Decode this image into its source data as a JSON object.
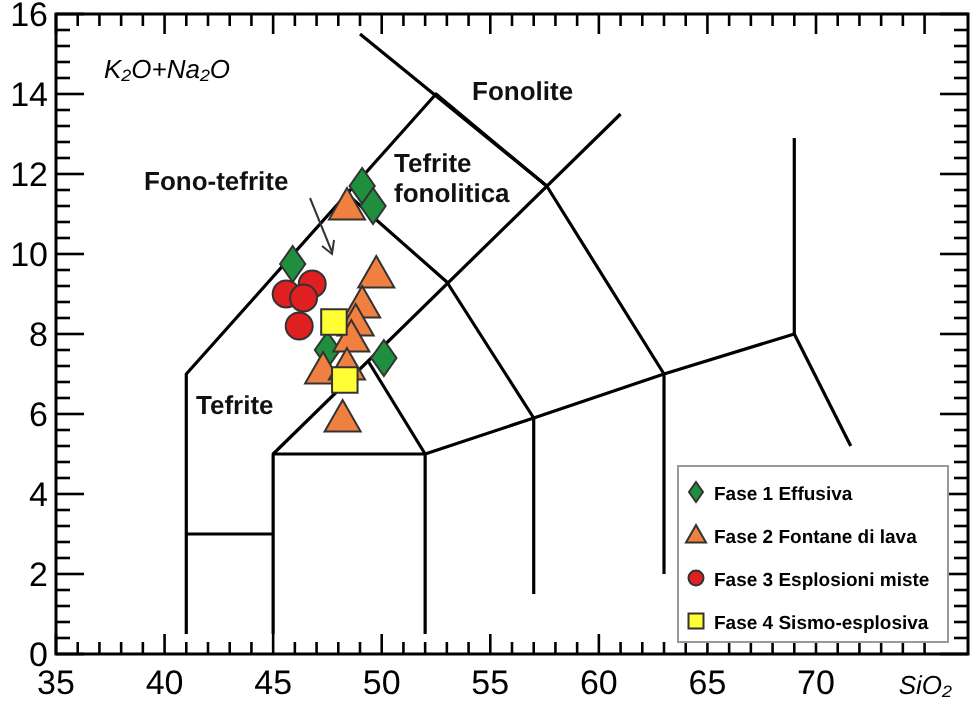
{
  "chart_data": {
    "type": "scatter",
    "xlabel": "SiO₂",
    "ylabel": "K₂O+Na₂O",
    "xlim": [
      35,
      77
    ],
    "ylim": [
      0,
      16
    ],
    "xticks": [
      35,
      40,
      45,
      50,
      55,
      60,
      65,
      70,
      {
        "value": 75,
        "label": null
      }
    ],
    "yticks": [
      0,
      2,
      4,
      6,
      8,
      10,
      12,
      14,
      16
    ],
    "grid": false,
    "legend": "bottom right",
    "series": [
      {
        "type": "line",
        "color": "#000000",
        "marker": "none",
        "x": [
          41,
          41,
          52.5,
          57.6,
          63,
          63
        ],
        "values": [
          0.5,
          7,
          14,
          11.7,
          7,
          2
        ]
      },
      {
        "type": "line",
        "color": "#000000",
        "marker": "none",
        "x": [
          41,
          45
        ],
        "values": [
          3,
          3
        ]
      },
      {
        "type": "line",
        "color": "#000000",
        "marker": "none",
        "x": [
          45,
          45,
          52,
          52
        ],
        "values": [
          0.5,
          5,
          5,
          0.5
        ]
      },
      {
        "type": "line",
        "color": "#000000",
        "marker": "none",
        "x": [
          45,
          61
        ],
        "values": [
          5,
          13.5
        ]
      },
      {
        "type": "line",
        "color": "#000000",
        "marker": "none",
        "x": [
          49.4,
          52
        ],
        "values": [
          7.3,
          5
        ]
      },
      {
        "type": "line",
        "color": "#000000",
        "marker": "none",
        "x": [
          48.4,
          53,
          57,
          57
        ],
        "values": [
          11.5,
          9.3,
          5.9,
          1.5
        ]
      },
      {
        "type": "line",
        "color": "#000000",
        "marker": "none",
        "x": [
          49,
          57.6
        ],
        "values": [
          15.5,
          11.7
        ]
      },
      {
        "type": "line",
        "color": "#000000",
        "marker": "none",
        "x": [
          52,
          57,
          63,
          69,
          71.6
        ],
        "values": [
          5,
          5.9,
          7,
          8,
          5.2
        ]
      },
      {
        "type": "line",
        "color": "#000000",
        "marker": "none",
        "x": [
          69,
          69
        ],
        "values": [
          8,
          12.9
        ]
      },
      {
        "name": "Fase 1 Effusiva",
        "color": "#1f8f3f",
        "marker": "diamond",
        "x": [
          49.1,
          49.6,
          45.9,
          47.5,
          50.1
        ],
        "values": [
          11.7,
          11.2,
          9.75,
          7.6,
          7.4
        ]
      },
      {
        "name": "Fase 2 Fontane di lava",
        "color": "#f08040",
        "marker": "triangle",
        "x": [
          48.4,
          49.75,
          49.1,
          48.8,
          48.6,
          47.3,
          48.4,
          48.2
        ],
        "values": [
          11.2,
          9.5,
          8.75,
          8.3,
          7.9,
          7.1,
          7.2,
          5.9
        ]
      },
      {
        "name": "Fase 3 Esplosioni miste",
        "color": "#e02020",
        "marker": "circle",
        "x": [
          45.6,
          46.8,
          46.4,
          46.2
        ],
        "values": [
          9.0,
          9.25,
          8.9,
          8.2
        ]
      },
      {
        "name": "Fase 4 Sismo-esplosiva",
        "color": "#ffff33",
        "marker": "square",
        "x": [
          47.8,
          48.3
        ],
        "values": [
          8.3,
          6.85
        ]
      }
    ],
    "annotations": [
      "Fonolite",
      "Tefrite fonolitica",
      "Fono-tefrite",
      "Tefrite"
    ]
  }
}
